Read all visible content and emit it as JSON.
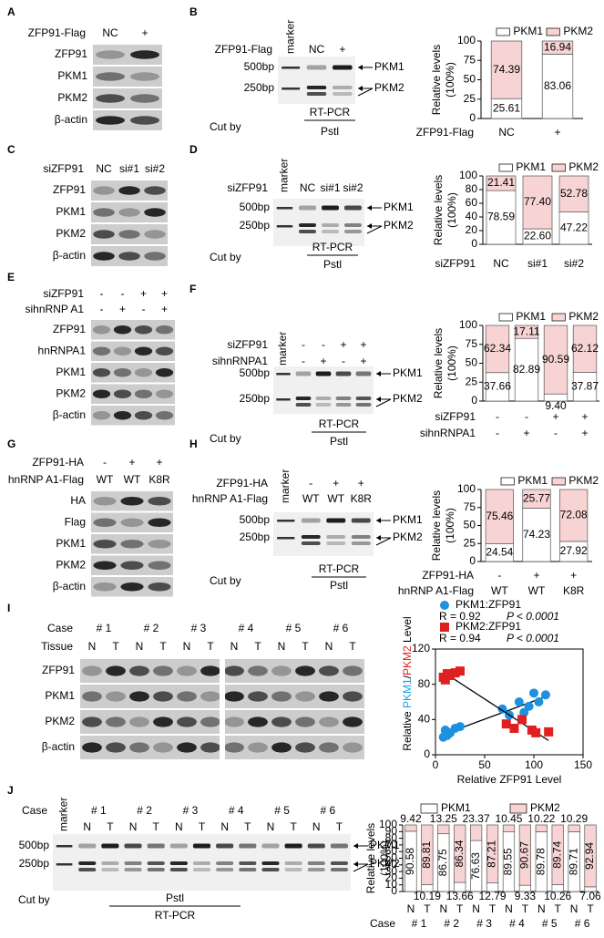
{
  "panels": {
    "A": {
      "label": "A",
      "headers": [
        {
          "name": "ZFP91-Flag",
          "lanes": [
            "NC",
            "+"
          ]
        }
      ],
      "rows": [
        "ZFP91",
        "PKM1",
        "PKM2",
        "β-actin"
      ]
    },
    "B": {
      "label": "B",
      "headers": [
        {
          "name": "ZFP91-Flag",
          "lanes": [
            "NC",
            "+"
          ]
        }
      ],
      "marker": "marker",
      "sizes": [
        "500bp",
        "250bp"
      ],
      "bands": [
        "PKM1",
        "PKM2"
      ],
      "cut_by": "Cut by",
      "method": "RT-PCR",
      "enzyme": "Pstl"
    },
    "C": {
      "label": "C",
      "headers": [
        {
          "name": "siZFP91",
          "lanes": [
            "NC",
            "si#1",
            "si#2"
          ]
        }
      ],
      "rows": [
        "ZFP91",
        "PKM1",
        "PKM2",
        "β-actin"
      ]
    },
    "D": {
      "label": "D",
      "headers": [
        {
          "name": "siZFP91",
          "lanes": [
            "NC",
            "si#1",
            "si#2"
          ]
        }
      ],
      "marker": "marker",
      "sizes": [
        "500bp",
        "250bp"
      ],
      "bands": [
        "PKM1",
        "PKM2"
      ],
      "cut_by": "Cut by",
      "method": "RT-PCR",
      "enzyme": "Pstl"
    },
    "E": {
      "label": "E",
      "headers": [
        {
          "name": "siZFP91",
          "lanes": [
            "-",
            "-",
            "+",
            "+"
          ]
        },
        {
          "name": "sihnRNP A1",
          "lanes": [
            "-",
            "+",
            "-",
            "+"
          ]
        }
      ],
      "rows": [
        "ZFP91",
        "hnRNPA1",
        "PKM1",
        "PKM2",
        "β-actin"
      ]
    },
    "F": {
      "label": "F",
      "headers": [
        {
          "name": "siZFP91",
          "lanes": [
            "-",
            "-",
            "+",
            "+"
          ]
        },
        {
          "name": "sihnRNPA1",
          "lanes": [
            "-",
            "+",
            "-",
            "+"
          ]
        }
      ],
      "marker": "marker",
      "sizes": [
        "500bp",
        "250bp"
      ],
      "bands": [
        "PKM1",
        "PKM2"
      ],
      "cut_by": "Cut by",
      "method": "RT-PCR",
      "enzyme": "Pstl"
    },
    "G": {
      "label": "G",
      "headers": [
        {
          "name": "ZFP91-HA",
          "lanes": [
            "-",
            "+",
            "+"
          ]
        },
        {
          "name": "hnRNP A1-Flag",
          "lanes": [
            "WT",
            "WT",
            "K8R"
          ]
        }
      ],
      "rows": [
        "HA",
        "Flag",
        "PKM1",
        "PKM2",
        "β-actin"
      ]
    },
    "H": {
      "label": "H",
      "headers": [
        {
          "name": "ZFP91-HA",
          "lanes": [
            "-",
            "+",
            "+"
          ]
        },
        {
          "name": "hnRNP A1-Flag",
          "lanes": [
            "WT",
            "WT",
            "K8R"
          ]
        }
      ],
      "marker": "marker",
      "sizes": [
        "500bp",
        "250bp"
      ],
      "bands": [
        "PKM1",
        "PKM2"
      ],
      "cut_by": "Cut by",
      "method": "RT-PCR",
      "enzyme": "Pstl"
    },
    "I": {
      "label": "I",
      "headers": [
        {
          "name": "Case",
          "lanes": [
            "# 1",
            "# 2",
            "# 3",
            "# 4",
            "# 5",
            "# 6"
          ]
        },
        {
          "name": "Tissue",
          "lanes": [
            "N",
            "T",
            "N",
            "T",
            "N",
            "T",
            "N",
            "T",
            "N",
            "T",
            "N",
            "T"
          ]
        }
      ],
      "rows": [
        "ZFP91",
        "PKM1",
        "PKM2",
        "β-actin"
      ]
    },
    "J": {
      "label": "J",
      "headers": [
        {
          "name": "Case",
          "lanes": [
            "# 1",
            "# 2",
            "# 3",
            "# 4",
            "# 5",
            "# 6"
          ]
        },
        {
          "lanes": [
            "N",
            "T",
            "N",
            "T",
            "N",
            "T",
            "N",
            "T",
            "N",
            "T",
            "N",
            "T"
          ]
        }
      ],
      "marker": "marker",
      "sizes": [
        "500bp",
        "250bp"
      ],
      "bands": [
        "PKM1",
        "PKM2"
      ],
      "cut_by": "Cut by",
      "method": "RT-PCR",
      "enzyme": "Pstl"
    }
  },
  "chart_data": [
    {
      "type": "stacked-bar",
      "ylabel": [
        "Relative levels",
        "(100%)"
      ],
      "ylim": [
        0,
        100
      ],
      "yticks": [
        0,
        25,
        50,
        75,
        100
      ],
      "category_rows": [
        {
          "name": "ZFP91-Flag",
          "labels": [
            "NC",
            "+"
          ]
        }
      ],
      "series": [
        {
          "name": "PKM1",
          "color": "#ffffff",
          "values": [
            25.61,
            83.06
          ]
        },
        {
          "name": "PKM2",
          "color": "#f8d3d3",
          "values": [
            74.39,
            16.94
          ]
        }
      ]
    },
    {
      "type": "stacked-bar",
      "ylabel": [
        "Relative levels",
        "(100%)"
      ],
      "ylim": [
        0,
        100
      ],
      "yticks": [
        0,
        20,
        40,
        60,
        80,
        100
      ],
      "category_rows": [
        {
          "name": "siZFP91",
          "labels": [
            "NC",
            "si#1",
            "si#2"
          ]
        }
      ],
      "series": [
        {
          "name": "PKM1",
          "color": "#ffffff",
          "values": [
            78.59,
            22.6,
            47.22
          ],
          "value_labels": [
            "78.59",
            "22.60",
            "47.22"
          ]
        },
        {
          "name": "PKM2",
          "color": "#f8d3d3",
          "values": [
            21.41,
            77.4,
            52.78
          ],
          "value_labels": [
            "21.41",
            "77.40",
            "52.78"
          ]
        }
      ]
    },
    {
      "type": "stacked-bar",
      "ylabel": [
        "Relative levels",
        "(100%)"
      ],
      "ylim": [
        0,
        100
      ],
      "yticks": [
        0,
        25,
        50,
        75,
        100
      ],
      "category_rows": [
        {
          "name": "siZFP91",
          "labels": [
            "-",
            "-",
            "+",
            "+"
          ]
        },
        {
          "name": "sihnRNPA1",
          "labels": [
            "-",
            "+",
            "-",
            "+"
          ]
        }
      ],
      "series": [
        {
          "name": "PKM1",
          "color": "#ffffff",
          "values": [
            37.66,
            82.89,
            9.4,
            37.87
          ],
          "value_labels": [
            "37.66",
            "82.89",
            "9.40",
            "37.87"
          ]
        },
        {
          "name": "PKM2",
          "color": "#f8d3d3",
          "values": [
            62.34,
            17.11,
            90.59,
            62.12
          ]
        }
      ]
    },
    {
      "type": "stacked-bar",
      "ylabel": [
        "Relative levels",
        "(100%)"
      ],
      "ylim": [
        0,
        100
      ],
      "yticks": [
        0,
        25,
        50,
        75,
        100
      ],
      "category_rows": [
        {
          "name": "ZFP91-HA",
          "labels": [
            "-",
            "+",
            "+"
          ]
        },
        {
          "name": "hnRNP A1-Flag",
          "labels": [
            "WT",
            "WT",
            "K8R"
          ]
        }
      ],
      "series": [
        {
          "name": "PKM1",
          "color": "#ffffff",
          "values": [
            24.54,
            74.23,
            27.92
          ]
        },
        {
          "name": "PKM2",
          "color": "#f8d3d3",
          "values": [
            75.46,
            25.77,
            72.08
          ]
        }
      ]
    },
    {
      "type": "scatter",
      "xlabel": "Relative ZFP91 Level",
      "ylabel_parts": [
        {
          "text": "Relative ",
          "color": "#000000"
        },
        {
          "text": "PKM1",
          "color": "#1aa3e8"
        },
        {
          "text": "/",
          "color": "#000000"
        },
        {
          "text": "PKM2",
          "color": "#e02020"
        },
        {
          "text": " Level",
          "color": "#000000"
        }
      ],
      "xlim": [
        0,
        150
      ],
      "xticks": [
        0,
        50,
        100,
        150
      ],
      "ylim": [
        0,
        120
      ],
      "yticks": [
        0,
        40,
        80,
        120
      ],
      "trendline": true,
      "series": [
        {
          "name": "PKM1:ZFP91",
          "color": "#1e90e0",
          "marker": "circle",
          "stats": {
            "r": "R = 0.92",
            "p": "P < 0.0001"
          },
          "x": [
            8,
            10,
            12,
            15,
            20,
            25,
            68,
            75,
            85,
            90,
            95,
            100,
            105,
            112
          ],
          "values": [
            20,
            28,
            22,
            25,
            30,
            32,
            52,
            45,
            60,
            48,
            55,
            70,
            60,
            68
          ]
        },
        {
          "name": "PKM2:ZFP91",
          "color": "#e02020",
          "marker": "square",
          "stats": {
            "r": "R = 0.94",
            "p": "P < 0.0001"
          },
          "x": [
            8,
            10,
            12,
            15,
            20,
            25,
            72,
            80,
            88,
            98,
            102,
            115
          ],
          "values": [
            88,
            85,
            92,
            90,
            93,
            95,
            35,
            30,
            40,
            28,
            25,
            26
          ]
        }
      ]
    },
    {
      "type": "stacked-bar",
      "ylabel": [
        "Relative levels",
        "(100%)"
      ],
      "ylim": [
        0,
        100
      ],
      "yticks": [
        0,
        10,
        20,
        30,
        40,
        50,
        60,
        70,
        80,
        90,
        100
      ],
      "category_rows": [
        {
          "labels": [
            "N",
            "T",
            "N",
            "T",
            "N",
            "T",
            "N",
            "T",
            "N",
            "T",
            "N",
            "T"
          ]
        },
        {
          "name": "Case",
          "labels": [
            "# 1",
            "# 2",
            "# 3",
            "# 4",
            "# 5",
            "# 6"
          ]
        }
      ],
      "series": [
        {
          "name": "PKM1",
          "color": "#ffffff",
          "values": [
            90.58,
            10.19,
            86.75,
            13.66,
            76.63,
            12.79,
            89.55,
            9.33,
            89.78,
            10.26,
            89.71,
            7.06
          ]
        },
        {
          "name": "PKM2",
          "color": "#f8d3d3",
          "values": [
            9.42,
            89.81,
            13.25,
            86.34,
            23.37,
            87.21,
            10.45,
            90.67,
            10.22,
            89.74,
            10.29,
            92.94
          ]
        }
      ]
    }
  ]
}
